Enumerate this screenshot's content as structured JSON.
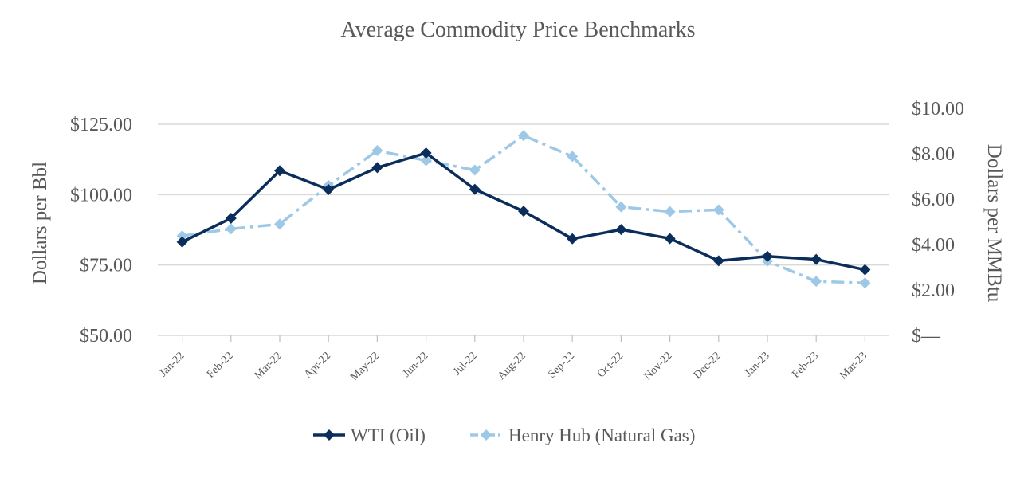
{
  "chart_data": {
    "type": "line",
    "title": "Average Commodity Price Benchmarks",
    "categories": [
      "Jan-22",
      "Feb-22",
      "Mar-22",
      "Apr-22",
      "May-22",
      "Jun-22",
      "Jul-22",
      "Aug-22",
      "Sep-22",
      "Oct-22",
      "Nov-22",
      "Dec-22",
      "Jan-23",
      "Feb-23",
      "Mar-23"
    ],
    "y_left": {
      "label": "Dollars per Bbl",
      "ylim": [
        50,
        125
      ],
      "ticks": [
        50,
        75,
        100,
        125
      ],
      "tick_labels": [
        "$50.00",
        "$75.00",
        "$100.00",
        "$125.00"
      ]
    },
    "y_right": {
      "label": "Dollars per MMBtu",
      "ylim": [
        0,
        10
      ],
      "ticks": [
        0,
        2,
        4,
        6,
        8,
        10
      ],
      "tick_labels": [
        "$—",
        "$2.00",
        "$4.00",
        "$6.00",
        "$8.00",
        "$10.00"
      ]
    },
    "gridlines": true,
    "legend_position": "bottom",
    "series": [
      {
        "name": "WTI (Oil)",
        "axis": "left",
        "color": "#0b2d5b",
        "style": "solid",
        "marker": "diamond",
        "values": [
          83.2,
          91.6,
          108.5,
          101.8,
          109.6,
          114.8,
          101.9,
          94.1,
          84.3,
          87.6,
          84.4,
          76.5,
          78.1,
          77.0,
          73.3
        ]
      },
      {
        "name": "Henry Hub (Natural Gas)",
        "axis": "right",
        "color": "#9dc8e6",
        "style": "dash-dot",
        "marker": "diamond",
        "values": [
          4.38,
          4.69,
          4.9,
          6.6,
          8.14,
          7.7,
          7.28,
          8.8,
          7.88,
          5.66,
          5.45,
          5.53,
          3.27,
          2.38,
          2.31
        ]
      }
    ]
  }
}
